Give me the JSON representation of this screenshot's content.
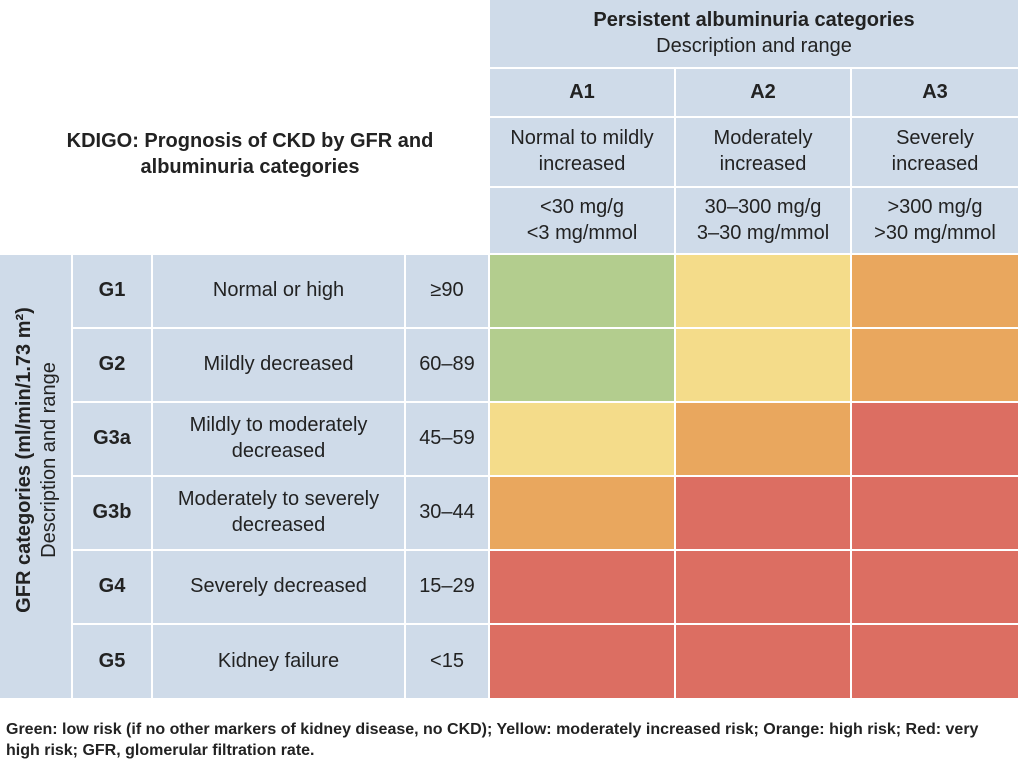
{
  "colors": {
    "header_bg": "#cfdbe9",
    "green": "#b3cd8e",
    "yellow": "#f4dc8a",
    "orange": "#e9a75e",
    "red": "#dc6e62"
  },
  "title": "KDIGO: Prognosis of CKD by GFR and albuminuria categories",
  "albuminuria": {
    "heading": "Persistent albuminuria categories",
    "subheading": "Description and range",
    "columns": [
      {
        "code": "A1",
        "description": "Normal to mildly increased",
        "range_mass": "<30 mg/g",
        "range_molar": "<3 mg/mmol"
      },
      {
        "code": "A2",
        "description": "Moderately increased",
        "range_mass": "30–300 mg/g",
        "range_molar": "3–30 mg/mmol"
      },
      {
        "code": "A3",
        "description": "Severely increased",
        "range_mass": ">300 mg/g",
        "range_molar": ">30 mg/mmol"
      }
    ]
  },
  "gfr": {
    "heading": "GFR categories (ml/min/1.73 m²)",
    "subheading": "Description and range",
    "rows": [
      {
        "code": "G1",
        "description": "Normal or high",
        "range": "≥90",
        "risk": [
          "green",
          "yellow",
          "orange"
        ]
      },
      {
        "code": "G2",
        "description": "Mildly decreased",
        "range": "60–89",
        "risk": [
          "green",
          "yellow",
          "orange"
        ]
      },
      {
        "code": "G3a",
        "description": "Mildly to moderately decreased",
        "range": "45–59",
        "risk": [
          "yellow",
          "orange",
          "red"
        ]
      },
      {
        "code": "G3b",
        "description": "Moderately to severely decreased",
        "range": "30–44",
        "risk": [
          "orange",
          "red",
          "red"
        ]
      },
      {
        "code": "G4",
        "description": "Severely decreased",
        "range": "15–29",
        "risk": [
          "red",
          "red",
          "red"
        ]
      },
      {
        "code": "G5",
        "description": "Kidney failure",
        "range": "<15",
        "risk": [
          "red",
          "red",
          "red"
        ]
      }
    ]
  },
  "legend": "Green: low risk (if no other markers of kidney disease, no CKD); Yellow: moderately increased risk; Orange: high risk; Red: very high risk; GFR, glomerular filtration rate."
}
